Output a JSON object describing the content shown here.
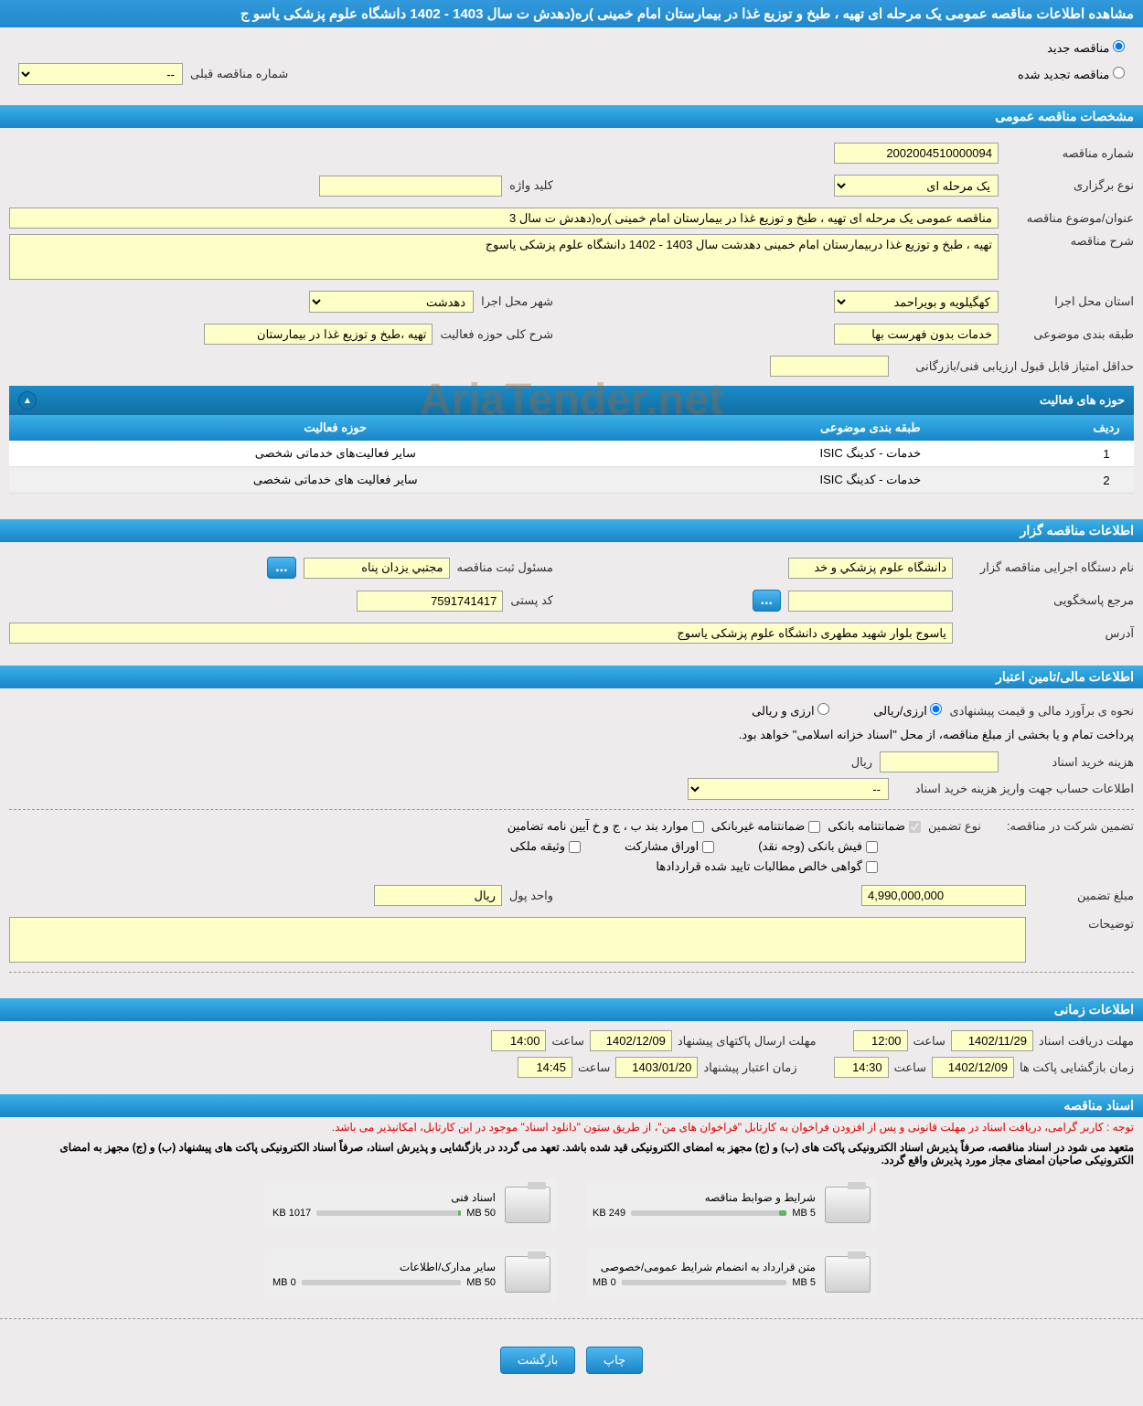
{
  "page_title": "مشاهده اطلاعات مناقصه عمومی یک مرحله ای تهیه ، طبخ و توزیع غذا در بیمارستان امام خمینی )ره(دهدش ت سال 1403 - 1402 دانشگاه علوم پزشکی یاسو ج",
  "radios": {
    "new": "مناقصه جدید",
    "renewed": "مناقصه تجدید شده",
    "prev_number_label": "شماره مناقصه قبلی",
    "prev_number_value": "--"
  },
  "sections": {
    "general": "مشخصات مناقصه عمومی",
    "organizer": "اطلاعات مناقصه گزار",
    "financial": "اطلاعات مالی/تامین اعتبار",
    "timing": "اطلاعات زمانی",
    "docs": "اسناد مناقصه"
  },
  "general": {
    "tender_no_label": "شماره مناقصه",
    "tender_no": "2002004510000094",
    "type_label": "نوع برگزاری",
    "type": "یک مرحله ای",
    "keyword_label": "کلید واژه",
    "keyword": "",
    "subject_label": "عنوان/موضوع مناقصه",
    "subject": "مناقصه عمومی یک مرحله ای تهیه ، طبخ و توزیع غذا در بیمارستان امام خمینی )ره(دهدش ت سال 3",
    "desc_label": "شرح مناقصه",
    "desc": "تهیه ، طبخ و توزیع غذا دربیمارستان امام خمینی دهدشت سال 1403 - 1402 دانشگاه علوم پزشکی یاسوج",
    "province_label": "استان محل اجرا",
    "province": "کهگیلویه و بویراحمد",
    "city_label": "شهر محل اجرا",
    "city": "دهدشت",
    "category_label": "طبقه بندی موضوعی",
    "category": "خدمات بدون فهرست بها",
    "scope_label": "شرح کلی حوزه فعالیت",
    "scope": "تهیه ،طبخ و توزیع غذا در بیمارستان",
    "min_score_label": "حداقل امتیاز قابل قبول ارزیابی فنی/بازرگانی",
    "min_score": ""
  },
  "activities": {
    "title": "حوزه های فعالیت",
    "cols": {
      "row": "ردیف",
      "category": "طبقه بندی موضوعی",
      "scope": "حوزه فعالیت"
    },
    "rows": [
      {
        "n": "1",
        "cat": "خدمات - کدینگ ISIC",
        "scope": "سایر فعالیت‌های خدماتی شخصی"
      },
      {
        "n": "2",
        "cat": "خدمات - کدینگ ISIC",
        "scope": "سایر فعالیت های خدماتی شخصی"
      }
    ]
  },
  "organizer": {
    "org_label": "نام دستگاه اجرایی مناقصه گزار",
    "org": "دانشگاه علوم پزشکي و خد",
    "responsible_label": "مسئول ثبت مناقصه",
    "responsible": "مجتبي يزدان پناه",
    "contact_label": "مرجع پاسخگویی",
    "contact": "",
    "postal_label": "کد پستی",
    "postal": "7591741417",
    "address_label": "آدرس",
    "address": "یاسوج بلوار شهید مطهری دانشگاه علوم پزشکی یاسوج",
    "btn_more": "..."
  },
  "financial": {
    "estimate_label": "نحوه ی برآورد مالی و قیمت پیشنهادی",
    "opt_rial": "ارزی/ریالی",
    "opt_both": "ارزی و ریالی",
    "payment_note": "پرداخت تمام و یا بخشی از مبلغ مناقصه، از محل \"اسناد خزانه اسلامی\" خواهد بود.",
    "doc_cost_label": "هزینه خرید اسناد",
    "doc_cost_unit": "ریال",
    "doc_cost": "",
    "account_label": "اطلاعات حساب جهت واریز هزینه خرید اسناد",
    "account": "--",
    "guarantee_label": "تضمین شرکت در مناقصه:",
    "guarantee_type_label": "نوع تضمین",
    "chk_bank": "ضمانتنامه بانکی",
    "chk_nonbank": "ضمانتنامه غیربانکی",
    "chk_clauses": "موارد بند ب ، ج و خ آیین نامه تضامین",
    "chk_cash": "فیش بانکی (وجه نقد)",
    "chk_bonds": "اوراق مشارکت",
    "chk_property": "وثیقه ملکی",
    "chk_claims": "گواهی خالص مطالبات تایید شده قراردادها",
    "amount_label": "مبلغ تضمین",
    "amount": "4,990,000,000",
    "currency_label": "واحد پول",
    "currency": "ریال",
    "notes_label": "توضیحات",
    "notes": ""
  },
  "timing": {
    "doc_deadline_label": "مهلت دریافت اسناد",
    "doc_deadline_date": "1402/11/29",
    "doc_deadline_time": "12:00",
    "pkg_deadline_label": "مهلت ارسال پاکتهای پیشنهاد",
    "pkg_deadline_date": "1402/12/09",
    "pkg_deadline_time": "14:00",
    "open_label": "زمان بازگشایی پاکت ها",
    "open_date": "1402/12/09",
    "open_time": "14:30",
    "validity_label": "زمان اعتبار پیشنهاد",
    "validity_date": "1403/01/20",
    "validity_time": "14:45",
    "time_word": "ساعت"
  },
  "docs": {
    "notice_red": "توجه : کاربر گرامی، دریافت اسناد در مهلت قانونی و پس از افزودن فراخوان به کارتابل \"فراخوان های من\"، از طریق ستون \"دانلود اسناد\" موجود در این کارتابل، امکانپذیر می باشد.",
    "notice_bold": "متعهد می شود در اسناد مناقصه، صرفاً پذیرش اسناد الکترونیکی پاکت های (ب) و (ج) مجهز به امضای الکترونیکی قید شده باشد. تعهد می گردد در بازگشایی و پذیرش اسناد، صرفاً اسناد الکترونیکی پاکت های پیشنهاد (ب) و (ج) مجهز به امضای الکترونیکی صاحبان امضای مجاز مورد پذیرش واقع گردد.",
    "items": [
      {
        "title": "شرایط و ضوابط مناقصه",
        "used": "249 KB",
        "max": "5 MB",
        "pct": 5
      },
      {
        "title": "اسناد فنی",
        "used": "1017 KB",
        "max": "50 MB",
        "pct": 2
      },
      {
        "title": "متن قرارداد به انضمام شرایط عمومی/خصوصی",
        "used": "0 MB",
        "max": "5 MB",
        "pct": 0
      },
      {
        "title": "سایر مدارک/اطلاعات",
        "used": "0 MB",
        "max": "50 MB",
        "pct": 0
      }
    ]
  },
  "buttons": {
    "print": "چاپ",
    "back": "بازگشت"
  },
  "watermark": "AriaTender.net",
  "colors": {
    "header_bg": "#2288cc",
    "section_bg": "#1985c8",
    "yellow": "#feffc6",
    "page_bg": "#edebec"
  }
}
